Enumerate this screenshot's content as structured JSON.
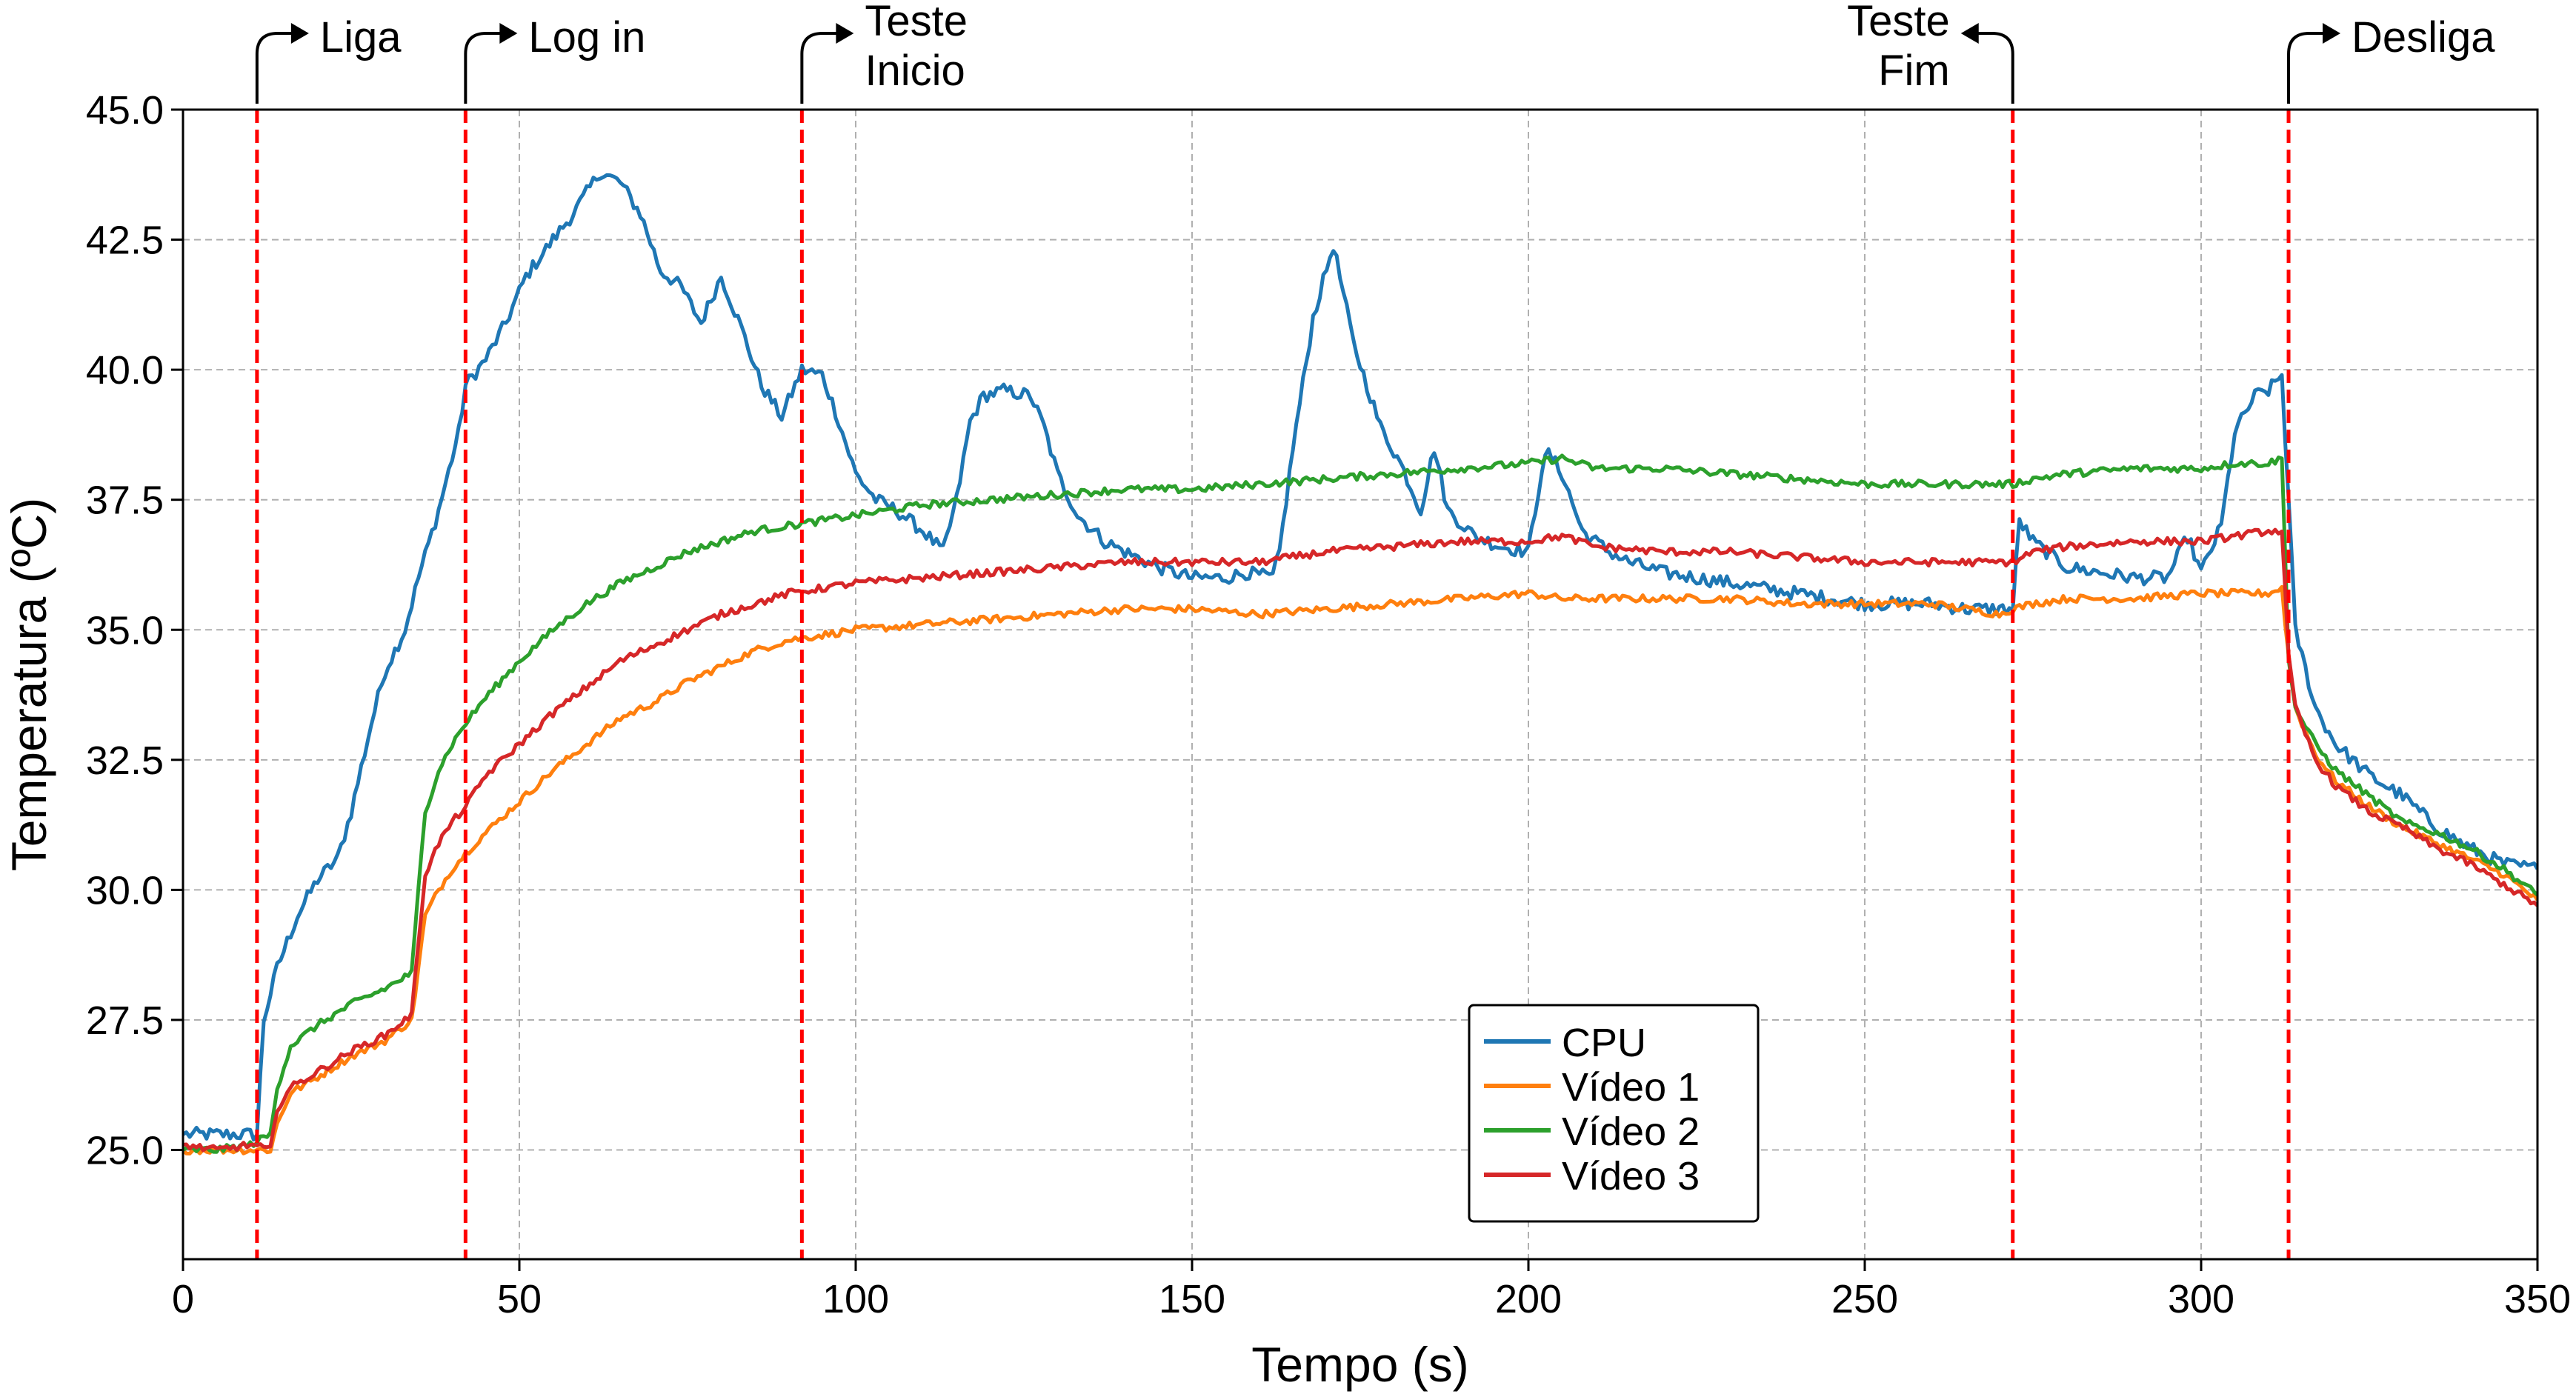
{
  "chart_data": {
    "type": "line",
    "xlabel": "Tempo (s)",
    "ylabel": "Temperatura (ºC)",
    "xlim": [
      0,
      350
    ],
    "ylim": [
      22.9,
      45.0
    ],
    "xticks": [
      0,
      50,
      100,
      150,
      200,
      250,
      300,
      350
    ],
    "yticks": [
      25.0,
      27.5,
      30.0,
      32.5,
      35.0,
      37.5,
      40.0,
      42.5,
      45.0
    ],
    "xtick_labels": [
      "0",
      "50",
      "100",
      "150",
      "200",
      "250",
      "300",
      "350"
    ],
    "ytick_labels": [
      "25.0",
      "27.5",
      "30.0",
      "32.5",
      "35.0",
      "37.5",
      "40.0",
      "42.5",
      "45.0"
    ],
    "grid": true,
    "legend_position": "bottom-center",
    "series": [
      {
        "name": "CPU",
        "color": "#1f77b4",
        "x": [
          0,
          5,
          9,
          11,
          12,
          14,
          17,
          20,
          23,
          25,
          28,
          30,
          33,
          35,
          38,
          41,
          42,
          45,
          48,
          51,
          55,
          58,
          62,
          65,
          68,
          71,
          74,
          77,
          80,
          83,
          86,
          89,
          92,
          95,
          97,
          100,
          103,
          106,
          110,
          113,
          115,
          117,
          119,
          122,
          126,
          128,
          130,
          133,
          137,
          140,
          145,
          150,
          155,
          158,
          162,
          163,
          165,
          168,
          171,
          174,
          178,
          181,
          184,
          186,
          188,
          192,
          196,
          200,
          202,
          203,
          205,
          208,
          212,
          215,
          220,
          225,
          230,
          235,
          240,
          250,
          260,
          265,
          270,
          272,
          273,
          275,
          280,
          285,
          290,
          295,
          298,
          300,
          303,
          305,
          308,
          310,
          312,
          313,
          314,
          317,
          320,
          325,
          330,
          335,
          340,
          345,
          350
        ],
        "values": [
          25.3,
          25.3,
          25.3,
          25.3,
          27.5,
          28.5,
          29.5,
          30.2,
          30.6,
          31.5,
          33.2,
          34.2,
          35.0,
          36.0,
          37.3,
          38.8,
          39.7,
          40.2,
          40.9,
          41.8,
          42.5,
          43.0,
          43.8,
          43.6,
          43.0,
          41.9,
          41.6,
          40.9,
          41.8,
          40.8,
          39.7,
          39.1,
          40.0,
          39.9,
          39.2,
          38.0,
          37.5,
          37.3,
          36.9,
          36.5,
          37.5,
          39.0,
          39.5,
          39.6,
          39.5,
          38.9,
          38.0,
          37.2,
          36.7,
          36.5,
          36.2,
          36.0,
          36.0,
          36.1,
          36.0,
          36.5,
          38.5,
          41.0,
          42.4,
          40.5,
          38.9,
          38.2,
          37.3,
          38.5,
          37.3,
          36.8,
          36.6,
          36.5,
          38.1,
          38.4,
          38.0,
          36.9,
          36.5,
          36.3,
          36.1,
          36.0,
          35.9,
          35.8,
          35.7,
          35.5,
          35.5,
          35.4,
          35.4,
          35.4,
          37.1,
          36.7,
          36.2,
          36.1,
          36.0,
          36.0,
          36.8,
          36.1,
          37.0,
          38.8,
          39.5,
          39.6,
          39.9,
          37.5,
          35.0,
          33.5,
          32.8,
          32.2,
          31.8,
          31.2,
          30.8,
          30.5,
          30.4
        ]
      },
      {
        "name": "Vídeo 1",
        "color": "#ff7f0e",
        "x": [
          0,
          5,
          10,
          13,
          14,
          16,
          20,
          25,
          30,
          34,
          35,
          36,
          38,
          40,
          42,
          45,
          50,
          55,
          60,
          65,
          70,
          75,
          80,
          85,
          90,
          95,
          100,
          110,
          120,
          130,
          140,
          150,
          160,
          170,
          180,
          190,
          200,
          205,
          210,
          220,
          230,
          240,
          250,
          255,
          260,
          265,
          270,
          272,
          275,
          280,
          290,
          300,
          305,
          310,
          312,
          313,
          314,
          317,
          320,
          325,
          330,
          335,
          340,
          345,
          350
        ],
        "values": [
          25.0,
          25.0,
          25.0,
          25.0,
          25.5,
          26.1,
          26.4,
          26.8,
          27.1,
          27.5,
          28.5,
          29.5,
          30.0,
          30.4,
          30.7,
          31.1,
          31.7,
          32.3,
          32.8,
          33.3,
          33.6,
          34.0,
          34.3,
          34.6,
          34.8,
          34.9,
          35.0,
          35.1,
          35.2,
          35.3,
          35.4,
          35.4,
          35.3,
          35.4,
          35.5,
          35.6,
          35.7,
          35.6,
          35.6,
          35.6,
          35.6,
          35.5,
          35.5,
          35.5,
          35.5,
          35.4,
          35.3,
          35.4,
          35.5,
          35.6,
          35.6,
          35.7,
          35.7,
          35.7,
          35.8,
          34.5,
          33.5,
          32.6,
          32.1,
          31.6,
          31.2,
          30.9,
          30.6,
          30.3,
          29.8
        ]
      },
      {
        "name": "Vídeo 2",
        "color": "#2ca02c",
        "x": [
          0,
          5,
          10,
          13,
          14,
          16,
          20,
          25,
          30,
          34,
          35,
          36,
          38,
          40,
          42,
          45,
          50,
          55,
          60,
          65,
          70,
          75,
          80,
          85,
          90,
          95,
          100,
          110,
          120,
          130,
          140,
          150,
          160,
          170,
          180,
          190,
          200,
          205,
          210,
          220,
          230,
          240,
          250,
          260,
          270,
          272,
          275,
          280,
          290,
          300,
          305,
          310,
          312,
          313,
          314,
          317,
          320,
          325,
          330,
          335,
          340,
          345,
          350
        ],
        "values": [
          25.0,
          25.0,
          25.1,
          25.3,
          26.2,
          27.0,
          27.4,
          27.8,
          28.1,
          28.4,
          30.0,
          31.5,
          32.3,
          32.8,
          33.2,
          33.7,
          34.4,
          35.0,
          35.5,
          35.9,
          36.2,
          36.5,
          36.7,
          36.9,
          37.0,
          37.1,
          37.2,
          37.4,
          37.5,
          37.6,
          37.7,
          37.7,
          37.8,
          37.9,
          38.0,
          38.1,
          38.2,
          38.3,
          38.1,
          38.1,
          38.0,
          37.9,
          37.8,
          37.8,
          37.8,
          37.8,
          37.9,
          38.0,
          38.1,
          38.1,
          38.2,
          38.2,
          38.3,
          34.5,
          33.5,
          32.8,
          32.3,
          31.8,
          31.3,
          31.1,
          30.8,
          30.4,
          29.9
        ]
      },
      {
        "name": "Vídeo 3",
        "color": "#d62728",
        "x": [
          0,
          5,
          10,
          13,
          14,
          16,
          20,
          25,
          30,
          34,
          35,
          36,
          38,
          40,
          42,
          45,
          50,
          55,
          60,
          65,
          70,
          75,
          80,
          85,
          90,
          95,
          100,
          110,
          120,
          130,
          140,
          150,
          160,
          170,
          180,
          190,
          200,
          205,
          210,
          220,
          230,
          240,
          250,
          260,
          270,
          272,
          275,
          280,
          290,
          300,
          305,
          310,
          312,
          313,
          314,
          317,
          320,
          325,
          330,
          335,
          340,
          345,
          350
        ],
        "values": [
          25.1,
          25.0,
          25.1,
          25.0,
          25.8,
          26.2,
          26.5,
          26.9,
          27.2,
          27.6,
          29.0,
          30.3,
          30.9,
          31.3,
          31.6,
          32.2,
          32.8,
          33.4,
          33.9,
          34.4,
          34.7,
          35.0,
          35.3,
          35.5,
          35.7,
          35.8,
          35.9,
          36.0,
          36.1,
          36.2,
          36.3,
          36.3,
          36.3,
          36.5,
          36.6,
          36.7,
          36.7,
          36.8,
          36.6,
          36.5,
          36.5,
          36.4,
          36.3,
          36.3,
          36.3,
          36.3,
          36.5,
          36.6,
          36.7,
          36.7,
          36.8,
          36.9,
          36.9,
          34.5,
          33.5,
          32.5,
          32.0,
          31.5,
          31.2,
          30.8,
          30.5,
          30.1,
          29.7
        ]
      }
    ],
    "annotations": [
      {
        "x": 11,
        "lines": [
          "Liga"
        ],
        "direction": "right"
      },
      {
        "x": 42,
        "lines": [
          "Log in"
        ],
        "direction": "right"
      },
      {
        "x": 92,
        "lines": [
          "Teste",
          "Inicio"
        ],
        "direction": "right"
      },
      {
        "x": 272,
        "lines": [
          "Teste",
          "Fim"
        ],
        "direction": "left"
      },
      {
        "x": 313,
        "lines": [
          "Desliga"
        ],
        "direction": "right"
      }
    ],
    "vline_color": "#ff0000"
  }
}
